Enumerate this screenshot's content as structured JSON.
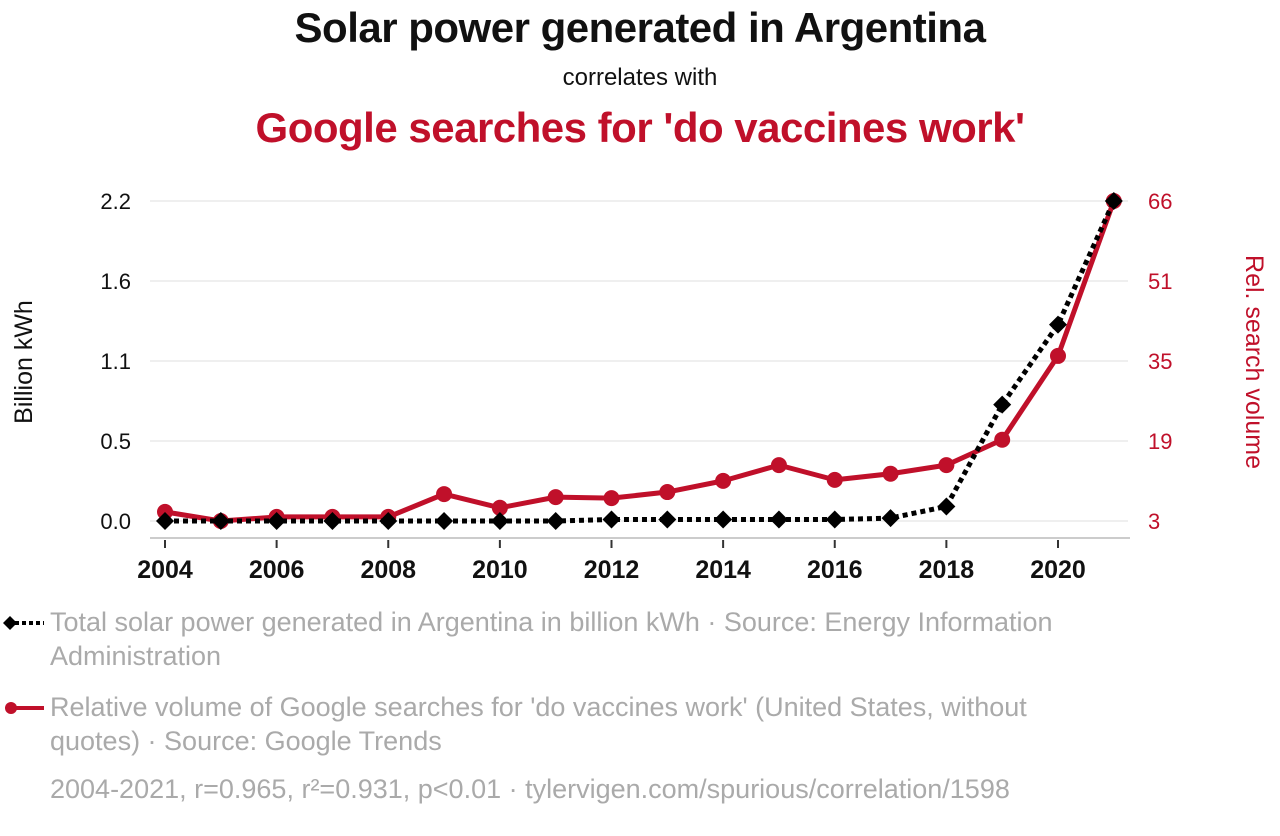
{
  "title": "Solar power generated in Argentina",
  "subtitle": "correlates with",
  "title2": "Google searches for 'do vaccines work'",
  "colors": {
    "series1": "#000000",
    "series2": "#c0102a",
    "legend_text": "#aaaaaa",
    "grid": "#eeeeee"
  },
  "legend": [
    {
      "icon": "black-dotted-diamond-line-icon",
      "text": "Total solar power generated in Argentina in billion kWh · Source: Energy Information Administration"
    },
    {
      "icon": "red-circle-line-icon",
      "text": "Relative volume of Google searches for 'do vaccines work' (United States, without quotes) · Source: Google Trends"
    }
  ],
  "footer": "2004-2021, r=0.965, r²=0.931, p<0.01 · tylervigen.com/spurious/correlation/1598",
  "chart_data": {
    "type": "line",
    "title": "Solar power generated in Argentina",
    "subtitle": "correlates with Google searches for 'do vaccines work'",
    "x": [
      2004,
      2005,
      2006,
      2007,
      2008,
      2009,
      2010,
      2011,
      2012,
      2013,
      2014,
      2015,
      2016,
      2017,
      2018,
      2019,
      2020,
      2021
    ],
    "xticks": [
      "2004",
      "2006",
      "2008",
      "2010",
      "2012",
      "2014",
      "2016",
      "2018",
      "2020"
    ],
    "xlim": [
      2004,
      2021
    ],
    "ylabel_left": "Billion kWh",
    "ylabel_right": "Rel. search volume",
    "yticks_left": [
      "0.0",
      "0.5",
      "1.1",
      "1.6",
      "2.2"
    ],
    "yticks_right": [
      "3",
      "19",
      "35",
      "51",
      "66"
    ],
    "ylim_left": [
      0,
      2.2
    ],
    "ylim_right": [
      3,
      66
    ],
    "grid": true,
    "legend_position": "bottom",
    "series": [
      {
        "name": "Total solar power generated in Argentina in billion kWh",
        "axis": "left",
        "style": "dotted-diamond",
        "values": [
          0.0,
          0.0,
          0.0,
          0.0,
          0.0,
          0.0,
          0.0,
          0.0,
          0.01,
          0.01,
          0.01,
          0.01,
          0.01,
          0.02,
          0.1,
          0.8,
          1.35,
          2.2
        ]
      },
      {
        "name": "Relative volume of Google searches for 'do vaccines work'",
        "axis": "right",
        "style": "solid-circle",
        "values": [
          4.8,
          3,
          3.8,
          3.8,
          3.8,
          8.3,
          5.6,
          7.7,
          7.5,
          8.7,
          10.9,
          14,
          11.1,
          12.3,
          14,
          19,
          35.5,
          66
        ]
      }
    ]
  }
}
